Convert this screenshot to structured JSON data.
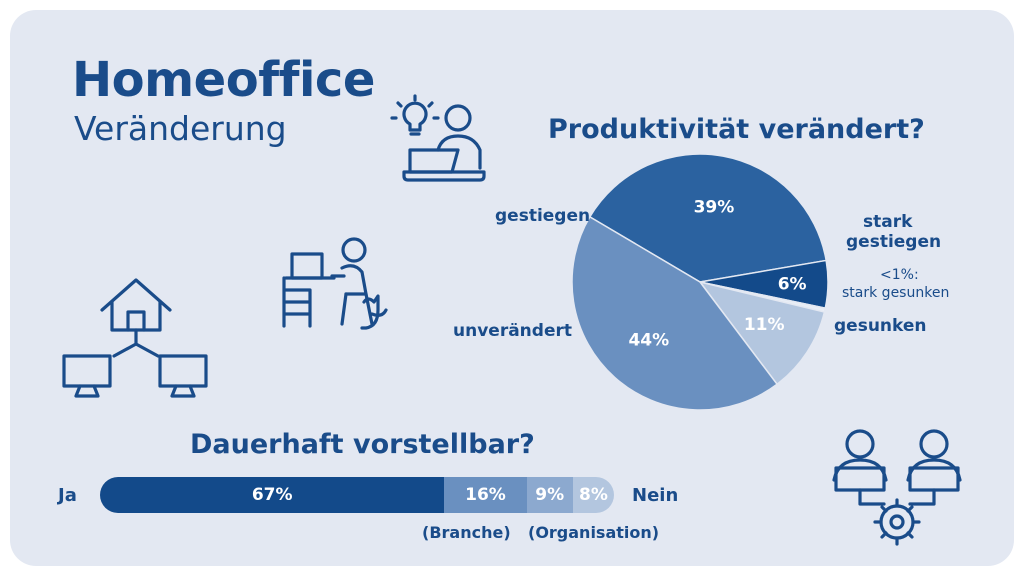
{
  "header": {
    "title": "Homeoffice",
    "subtitle": "Veränderung"
  },
  "icons": [
    "idea-laptop-person-icon",
    "desk-worker-with-cat-icon",
    "home-network-icon",
    "team-settings-icon"
  ],
  "colors": {
    "background": "#e3e8f2",
    "text": "#1a4c8a",
    "dark": "#134a8a",
    "mid": "#2b62a0",
    "light": "#6a90c0",
    "pale": "#b3c6df"
  },
  "chart_data": [
    {
      "type": "pie",
      "title": "Produktivität verändert?",
      "slices": [
        {
          "label": "gestiegen",
          "value": 39,
          "display": "39%"
        },
        {
          "label": "stark gestiegen",
          "value": 6,
          "display": "6%"
        },
        {
          "label": "stark gesunken",
          "value": 0.5,
          "display": "<1%:"
        },
        {
          "label": "gesunken",
          "value": 11,
          "display": "11%"
        },
        {
          "label": "unverändert",
          "value": 44,
          "display": "44%"
        }
      ],
      "extra_labels": {
        "stark_gestiegen_line1": "stark",
        "stark_gestiegen_line2": "gestiegen"
      }
    },
    {
      "type": "bar",
      "title": "Dauerhaft vorstellbar?",
      "left_label": "Ja",
      "right_label": "Nein",
      "segments": [
        {
          "value": 67,
          "display": "67%"
        },
        {
          "value": 16,
          "display": "16%"
        },
        {
          "value": 9,
          "display": "9%"
        },
        {
          "value": 8,
          "display": "8%"
        }
      ],
      "notes": [
        "(Branche)",
        "(Organisation)"
      ]
    }
  ]
}
